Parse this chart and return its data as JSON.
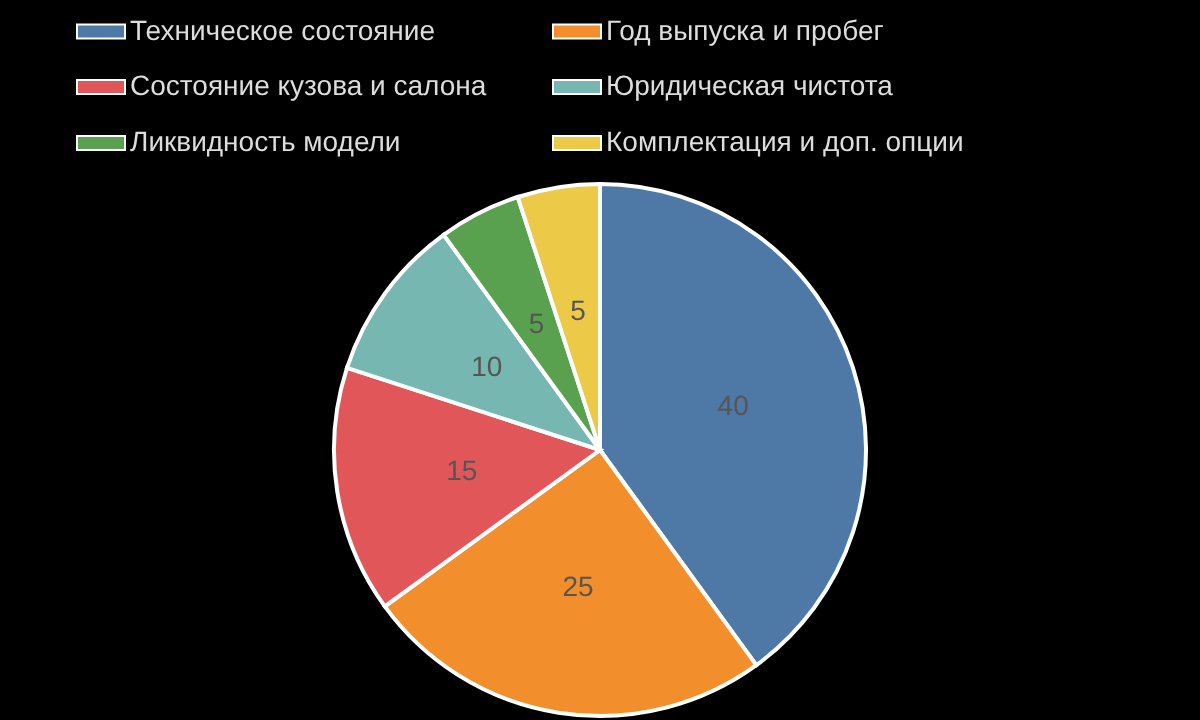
{
  "chart_data": {
    "type": "pie",
    "categories": [
      "Техническое состояние",
      "Год выпуска и пробег",
      "Состояние кузова и салона",
      "Юридическая чистота",
      "Ликвидность модели",
      "Комплектация и доп. опции"
    ],
    "values": [
      40,
      25,
      15,
      10,
      5,
      5
    ],
    "colors": [
      "#4e79a7",
      "#f28e2b",
      "#e15759",
      "#76b7b2",
      "#59a14f",
      "#edc948"
    ],
    "data_labels": true,
    "legend": "top"
  }
}
